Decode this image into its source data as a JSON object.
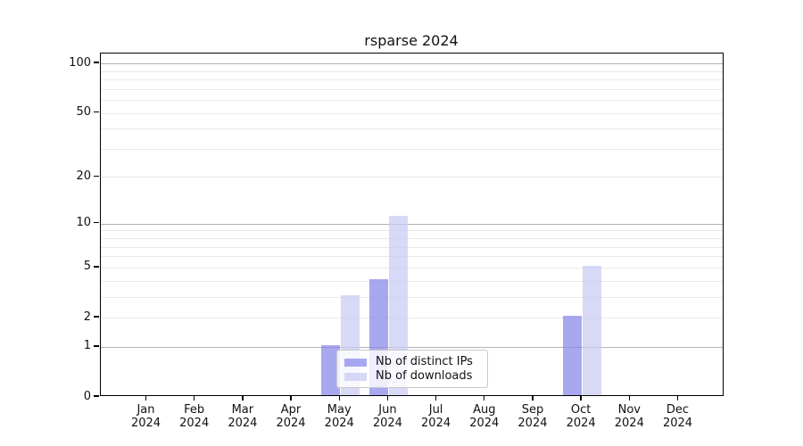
{
  "title": "rsparse 2024",
  "colors": {
    "distinct_ips": "rgba(139,139,235,0.75)",
    "downloads": "rgba(199,199,244,0.7)",
    "grid_major": "#b3b3b3",
    "grid_minor": "#e9e9e9",
    "axis": "#000000"
  },
  "legend": {
    "items": [
      {
        "label": "Nb of distinct IPs",
        "color_key": "distinct_ips"
      },
      {
        "label": "Nb of downloads",
        "color_key": "downloads"
      }
    ]
  },
  "chart_data": {
    "type": "bar",
    "title": "rsparse 2024",
    "categories": [
      "Jan 2024",
      "Feb 2024",
      "Mar 2024",
      "Apr 2024",
      "May 2024",
      "Jun 2024",
      "Jul 2024",
      "Aug 2024",
      "Sep 2024",
      "Oct 2024",
      "Nov 2024",
      "Dec 2024"
    ],
    "series": [
      {
        "name": "Nb of distinct IPs",
        "color_key": "distinct_ips",
        "values": [
          0,
          0,
          0,
          0,
          1,
          4,
          0,
          0,
          0,
          2,
          0,
          0
        ]
      },
      {
        "name": "Nb of downloads",
        "color_key": "downloads",
        "values": [
          0,
          0,
          0,
          0,
          3,
          11,
          0,
          0,
          0,
          5,
          0,
          0
        ]
      }
    ],
    "xlabel": "",
    "ylabel": "",
    "y_scale": "log1p",
    "y_ticks": [
      0,
      1,
      2,
      5,
      10,
      20,
      50,
      100
    ],
    "y_grid_major": [
      1,
      10,
      100
    ],
    "y_grid_minor": [
      2,
      3,
      4,
      5,
      6,
      7,
      8,
      9,
      20,
      30,
      40,
      50,
      60,
      70,
      80,
      90
    ],
    "ylim": [
      0,
      115
    ],
    "grid": true,
    "legend_position": "inside bottom-center"
  }
}
